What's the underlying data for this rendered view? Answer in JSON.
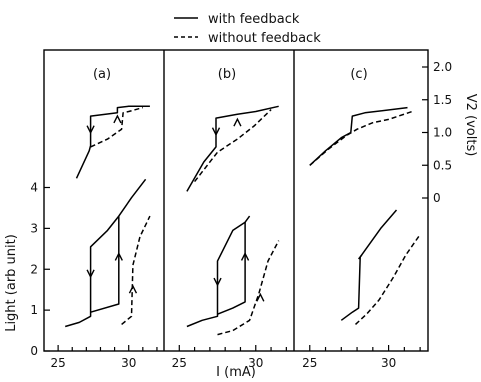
{
  "chart_data": {
    "type": "line",
    "legend": {
      "placement": "top",
      "entries": [
        {
          "label": "with feedback",
          "style": "solid"
        },
        {
          "label": "without feedback",
          "style": "dashed"
        }
      ]
    },
    "xlabel": "I (mA)",
    "ylabel_left": "Light (arb unit)",
    "ylabel_right": "V2 (volts)",
    "x_ticks": [
      "25",
      "30"
    ],
    "y_ticks_left": [
      "0",
      "1",
      "2",
      "3",
      "4"
    ],
    "y_ticks_right": [
      "0",
      "0.5",
      "1.0",
      "1.5",
      "2.0"
    ],
    "xlim": [
      24,
      32.5
    ],
    "ylim_light": [
      0,
      5
    ],
    "ylim_v2": [
      -0.35,
      2.15
    ],
    "panels": [
      {
        "label": "(a)",
        "light_with_feedback": {
          "x": [
            25.5,
            26.5,
            27.3,
            27.3,
            28.5,
            29.3,
            29.3,
            30.2,
            31.2
          ],
          "y": [
            0.6,
            0.7,
            0.85,
            2.55,
            2.95,
            3.3,
            3.3,
            3.75,
            4.2
          ]
        },
        "light_with_feedback_lower": {
          "x": [
            27.3,
            29.3,
            29.3
          ],
          "y": [
            0.95,
            1.15,
            3.3
          ]
        },
        "light_without_feedback": {
          "x": [
            29.5,
            30.2,
            30.3,
            30.8,
            31.5
          ],
          "y": [
            0.65,
            0.85,
            2.1,
            2.8,
            3.3
          ]
        },
        "v2_with_feedback": {
          "x": [
            26.3,
            27.2,
            27.3,
            27.3,
            29.2,
            29.2,
            30.0,
            31.5
          ],
          "y": [
            0.3,
            0.72,
            0.8,
            1.25,
            1.3,
            1.38,
            1.4,
            1.4
          ]
        },
        "v2_without_feedback": {
          "x": [
            27.3,
            28.5,
            29.5,
            29.6,
            30.0,
            31.0
          ],
          "y": [
            0.78,
            0.9,
            1.05,
            1.3,
            1.32,
            1.38
          ]
        }
      },
      {
        "label": "(b)",
        "light_with_feedback": {
          "x": [
            25.5,
            26.5,
            27.5,
            27.5,
            28.5,
            29.3,
            29.6
          ],
          "y": [
            0.6,
            0.75,
            0.85,
            2.2,
            2.95,
            3.15,
            3.3
          ]
        },
        "light_with_feedback_lower": {
          "x": [
            27.5,
            28.5,
            29.3,
            29.3
          ],
          "y": [
            0.9,
            1.05,
            1.2,
            3.15
          ]
        },
        "light_without_feedback": {
          "x": [
            27.5,
            28.5,
            29.6,
            30.2,
            30.8,
            31.5
          ],
          "y": [
            0.4,
            0.5,
            0.75,
            1.4,
            2.2,
            2.7
          ]
        },
        "v2_with_feedback": {
          "x": [
            25.5,
            26.6,
            27.4,
            27.4,
            28.8,
            30.0,
            31.5
          ],
          "y": [
            0.1,
            0.55,
            0.78,
            1.22,
            1.28,
            1.32,
            1.4
          ]
        },
        "v2_without_feedback": {
          "x": [
            26.0,
            27.5,
            28.8,
            29.9,
            31.0
          ],
          "y": [
            0.25,
            0.7,
            0.9,
            1.1,
            1.35
          ]
        }
      },
      {
        "label": "(c)",
        "light_with_feedback": {
          "x": [
            27.0,
            27.7,
            28.1,
            28.2,
            29.5,
            30.5
          ],
          "y": [
            0.75,
            0.95,
            1.05,
            2.3,
            3.0,
            3.45
          ]
        },
        "light_with_feedback_lower": {
          "x": [
            28.1,
            28.3
          ],
          "y": [
            2.25,
            2.35
          ]
        },
        "light_without_feedback": {
          "x": [
            27.9,
            28.6,
            29.4,
            30.3,
            31.1,
            32.0
          ],
          "y": [
            0.65,
            0.9,
            1.25,
            1.8,
            2.35,
            2.85
          ]
        },
        "v2_with_feedback": {
          "x": [
            25.0,
            26.0,
            27.0,
            27.6,
            27.7,
            28.5,
            31.2
          ],
          "y": [
            0.5,
            0.72,
            0.92,
            1.0,
            1.25,
            1.3,
            1.38
          ]
        },
        "v2_without_feedback": {
          "x": [
            25.0,
            26.2,
            27.3,
            28.0,
            29.0,
            30.0,
            31.5
          ],
          "y": [
            0.5,
            0.75,
            0.95,
            1.05,
            1.15,
            1.2,
            1.32
          ]
        }
      }
    ]
  }
}
